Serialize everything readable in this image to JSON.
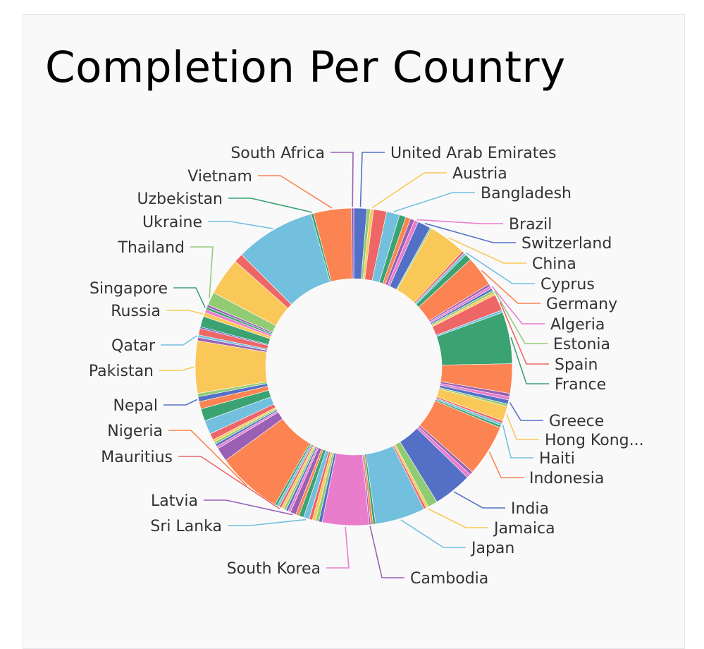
{
  "card": {
    "title": "Completion Per Country"
  },
  "chart_data": {
    "type": "pie",
    "donut": true,
    "title": "Completion Per Country",
    "slices": [
      {
        "name": "United Arab Emirates",
        "value": 1.6,
        "color": "#5470c6"
      },
      {
        "name": "",
        "value": 0.4,
        "color": "#91cc75"
      },
      {
        "name": "Austria",
        "value": 0.4,
        "color": "#fac858"
      },
      {
        "name": "",
        "value": 1.6,
        "color": "#ee6666"
      },
      {
        "name": "Bangladesh",
        "value": 1.6,
        "color": "#73c0de"
      },
      {
        "name": "",
        "value": 0.8,
        "color": "#3ba272"
      },
      {
        "name": "",
        "value": 0.6,
        "color": "#fc8452"
      },
      {
        "name": "",
        "value": 0.5,
        "color": "#9a60b4"
      },
      {
        "name": "Brazil",
        "value": 0.5,
        "color": "#ea7ccc"
      },
      {
        "name": "Switzerland",
        "value": 1.6,
        "color": "#5470c6"
      },
      {
        "name": "",
        "value": 0.2,
        "color": "#91cc75"
      },
      {
        "name": "China",
        "value": 4.6,
        "color": "#fac858"
      },
      {
        "name": "",
        "value": 0.3,
        "color": "#ee6666"
      },
      {
        "name": "Cyprus",
        "value": 0.3,
        "color": "#73c0de"
      },
      {
        "name": "",
        "value": 0.8,
        "color": "#3ba272"
      },
      {
        "name": "Germany",
        "value": 3.7,
        "color": "#fc8452"
      },
      {
        "name": "",
        "value": 0.3,
        "color": "#9a60b4"
      },
      {
        "name": "Algeria",
        "value": 0.3,
        "color": "#ea7ccc"
      },
      {
        "name": "",
        "value": 0.3,
        "color": "#5470c6"
      },
      {
        "name": "Estonia",
        "value": 0.3,
        "color": "#91cc75"
      },
      {
        "name": "",
        "value": 0.3,
        "color": "#fac858"
      },
      {
        "name": "Spain",
        "value": 2.0,
        "color": "#ee6666"
      },
      {
        "name": "",
        "value": 0.3,
        "color": "#73c0de"
      },
      {
        "name": "France",
        "value": 6.3,
        "color": "#3ba272"
      },
      {
        "name": "",
        "value": 3.6,
        "color": "#fc8452"
      },
      {
        "name": "",
        "value": 0.4,
        "color": "#9a60b4"
      },
      {
        "name": "",
        "value": 0.4,
        "color": "#ea7ccc"
      },
      {
        "name": "Greece",
        "value": 0.5,
        "color": "#5470c6"
      },
      {
        "name": "",
        "value": 0.3,
        "color": "#91cc75"
      },
      {
        "name": "Hong Kong...",
        "value": 1.8,
        "color": "#fac858"
      },
      {
        "name": "",
        "value": 0.3,
        "color": "#ee6666"
      },
      {
        "name": "Haiti",
        "value": 0.3,
        "color": "#73c0de"
      },
      {
        "name": "",
        "value": 0.3,
        "color": "#3ba272"
      },
      {
        "name": "Indonesia",
        "value": 6.3,
        "color": "#fc8452"
      },
      {
        "name": "",
        "value": 0.4,
        "color": "#9a60b4"
      },
      {
        "name": "",
        "value": 0.5,
        "color": "#ea7ccc"
      },
      {
        "name": "India",
        "value": 4.7,
        "color": "#5470c6"
      },
      {
        "name": "",
        "value": 1.2,
        "color": "#91cc75"
      },
      {
        "name": "Jamaica",
        "value": 0.3,
        "color": "#fac858"
      },
      {
        "name": "",
        "value": 0.3,
        "color": "#ee6666"
      },
      {
        "name": "Japan",
        "value": 6.1,
        "color": "#73c0de"
      },
      {
        "name": "",
        "value": 0.3,
        "color": "#3ba272"
      },
      {
        "name": "",
        "value": 0.3,
        "color": "#fc8452"
      },
      {
        "name": "Cambodia",
        "value": 0.2,
        "color": "#9a60b4"
      },
      {
        "name": "South Korea",
        "value": 5.7,
        "color": "#ea7ccc"
      },
      {
        "name": "",
        "value": 0.4,
        "color": "#5470c6"
      },
      {
        "name": "",
        "value": 0.4,
        "color": "#91cc75"
      },
      {
        "name": "",
        "value": 0.4,
        "color": "#fac858"
      },
      {
        "name": "",
        "value": 0.4,
        "color": "#ee6666"
      },
      {
        "name": "Sri Lanka",
        "value": 0.7,
        "color": "#73c0de"
      },
      {
        "name": "",
        "value": 0.6,
        "color": "#3ba272"
      },
      {
        "name": "",
        "value": 0.4,
        "color": "#fc8452"
      },
      {
        "name": "Latvia",
        "value": 0.7,
        "color": "#9a60b4"
      },
      {
        "name": "",
        "value": 0.3,
        "color": "#ea7ccc"
      },
      {
        "name": "",
        "value": 0.3,
        "color": "#5470c6"
      },
      {
        "name": "",
        "value": 0.3,
        "color": "#91cc75"
      },
      {
        "name": "",
        "value": 0.3,
        "color": "#fac858"
      },
      {
        "name": "Mauritius",
        "value": 0.3,
        "color": "#ee6666"
      },
      {
        "name": "",
        "value": 0.3,
        "color": "#73c0de"
      },
      {
        "name": "",
        "value": 0.3,
        "color": "#3ba272"
      },
      {
        "name": "Nigeria",
        "value": 8.0,
        "color": "#fc8452"
      },
      {
        "name": "",
        "value": 1.7,
        "color": "#9a60b4"
      },
      {
        "name": "",
        "value": 0.3,
        "color": "#ea7ccc"
      },
      {
        "name": "",
        "value": 0.3,
        "color": "#5470c6"
      },
      {
        "name": "",
        "value": 0.3,
        "color": "#91cc75"
      },
      {
        "name": "",
        "value": 0.3,
        "color": "#fac858"
      },
      {
        "name": "",
        "value": 0.8,
        "color": "#ee6666"
      },
      {
        "name": "",
        "value": 1.7,
        "color": "#73c0de"
      },
      {
        "name": "",
        "value": 1.5,
        "color": "#3ba272"
      },
      {
        "name": "",
        "value": 0.9,
        "color": "#fc8452"
      },
      {
        "name": "Nepal",
        "value": 0.6,
        "color": "#5470c6"
      },
      {
        "name": "",
        "value": 0.4,
        "color": "#91cc75"
      },
      {
        "name": "Pakistan",
        "value": 6.4,
        "color": "#fac858"
      },
      {
        "name": "",
        "value": 0.4,
        "color": "#9a60b4"
      },
      {
        "name": "Qatar",
        "value": 0.3,
        "color": "#73c0de"
      },
      {
        "name": "",
        "value": 0.8,
        "color": "#ee6666"
      },
      {
        "name": "",
        "value": 0.2,
        "color": "#5470c6"
      },
      {
        "name": "",
        "value": 1.3,
        "color": "#3ba272"
      },
      {
        "name": "Russia",
        "value": 0.5,
        "color": "#fac858"
      },
      {
        "name": "",
        "value": 0.4,
        "color": "#ea7ccc"
      },
      {
        "name": "Singapore",
        "value": 0.3,
        "color": "#3ba272"
      },
      {
        "name": "",
        "value": 0.3,
        "color": "#9a60b4"
      },
      {
        "name": "Thailand",
        "value": 1.6,
        "color": "#91cc75"
      },
      {
        "name": "",
        "value": 4.6,
        "color": "#fac858"
      },
      {
        "name": "",
        "value": 1.1,
        "color": "#ee6666"
      },
      {
        "name": "Ukraine",
        "value": 9.8,
        "color": "#73c0de"
      },
      {
        "name": "Uzbekistan",
        "value": 0.3,
        "color": "#3ba272"
      },
      {
        "name": "Vietnam",
        "value": 4.6,
        "color": "#fc8452"
      },
      {
        "name": "South Africa",
        "value": 0.3,
        "color": "#9a60b4"
      }
    ]
  }
}
